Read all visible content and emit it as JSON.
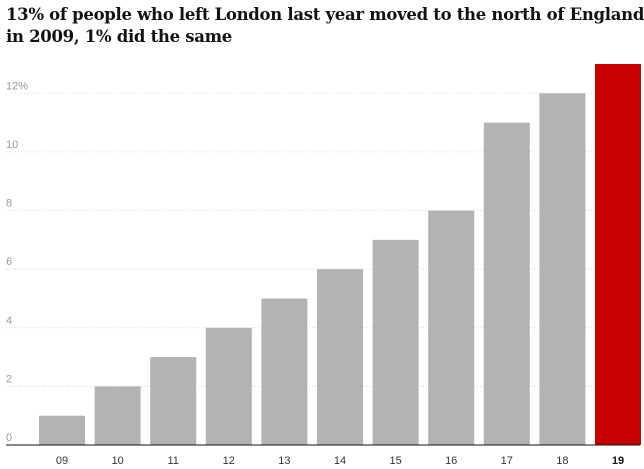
{
  "chart_data": {
    "type": "bar",
    "title_lines": [
      "13% of people who left London last year moved to the north of England -",
      "in 2009, 1% did the same"
    ],
    "categories": [
      "09",
      "10",
      "11",
      "12",
      "13",
      "14",
      "15",
      "16",
      "17",
      "18",
      "19"
    ],
    "values": [
      1,
      2,
      3,
      4,
      5,
      6,
      7,
      8,
      11,
      12,
      13
    ],
    "ylim": [
      0,
      13
    ],
    "y_ticks": [
      0,
      2,
      4,
      6,
      8,
      10,
      12
    ],
    "y_tick_labels": [
      "0",
      "2",
      "4",
      "6",
      "8",
      "10",
      "12%"
    ],
    "grid": true,
    "highlight_index": 10,
    "colors": {
      "bar": "#b3b3b3",
      "highlight": "#c70000"
    }
  }
}
